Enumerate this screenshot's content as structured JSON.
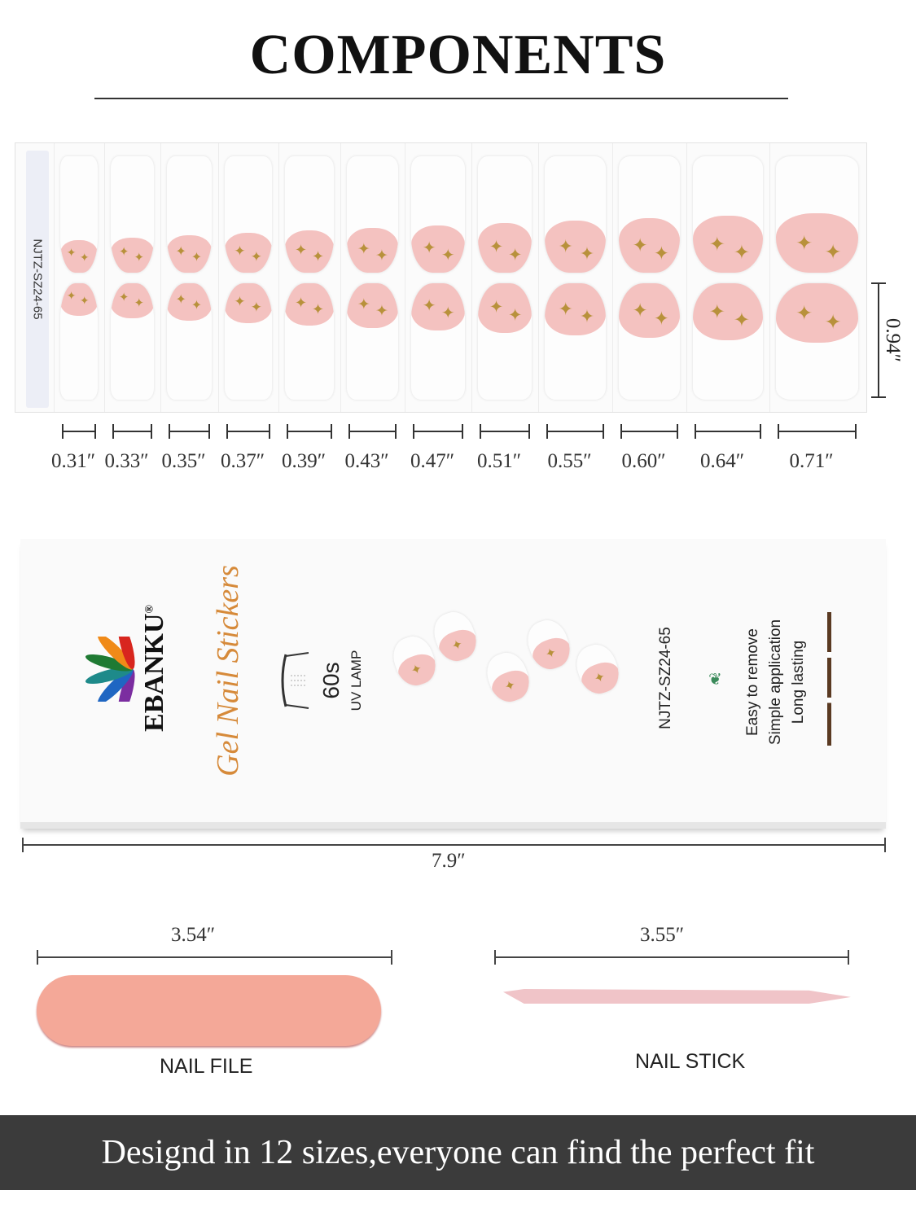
{
  "title": "COMPONENTS",
  "sheet": {
    "code": "NJTZ-SZ24-65",
    "height_label": "0.94″",
    "sizes": [
      "0.31″",
      "0.33″",
      "0.35″",
      "0.37″",
      "0.39″",
      "0.43″",
      "0.47″",
      "0.51″",
      "0.55″",
      "0.60″",
      "0.64″",
      "0.71″"
    ]
  },
  "package": {
    "brand": "EBANKU",
    "registered": "®",
    "product": "Gel Nail Stickers",
    "lamp_time": "60s",
    "lamp_label": "UV LAMP",
    "code": "NJTZ-SZ24-65",
    "features": [
      "Easy to remove",
      "Simple application",
      "Long lasting"
    ],
    "width_label": "7.9″"
  },
  "nail_file": {
    "length_label": "3.54″",
    "label": "NAIL FILE",
    "color": "#f4a898"
  },
  "nail_stick": {
    "length_label": "3.55″",
    "label": "NAIL STICK",
    "color": "#f0c4c8"
  },
  "banner": "Designd in 12 sizes,everyone can find the perfect fit",
  "colors": {
    "nail_pink": "#f4c2c0",
    "star_gold": "#b8913b",
    "banner_bg": "#3b3b3b"
  }
}
